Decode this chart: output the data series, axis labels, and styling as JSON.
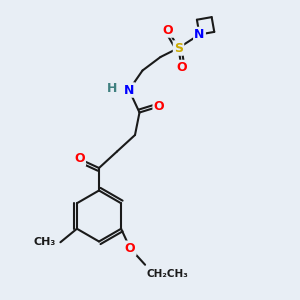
{
  "background_color": "#e8eef5",
  "bond_color": "#1a1a1a",
  "bond_width": 1.5,
  "atom_colors": {
    "O": "#ff0000",
    "N": "#0000ff",
    "S": "#ccaa00",
    "H": "#408080",
    "C": "#1a1a1a"
  },
  "font_size": 9
}
